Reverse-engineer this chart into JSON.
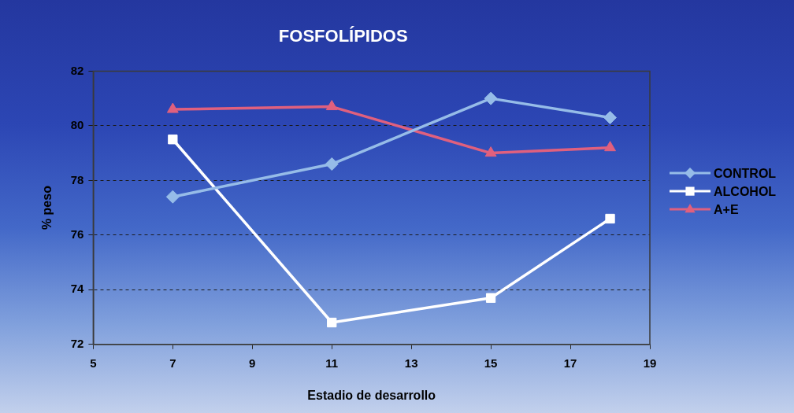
{
  "chart_data": {
    "type": "line",
    "title": "FOSFOLÍPIDOS",
    "xlabel": "Estadio de desarrollo",
    "ylabel": "% peso",
    "x": [
      7,
      11,
      15,
      18
    ],
    "series": [
      {
        "name": "CONTROL",
        "color": "#96bce8",
        "marker": "diamond",
        "values": [
          77.4,
          78.6,
          81.0,
          80.3
        ]
      },
      {
        "name": "ALCOHOL",
        "color": "#ffffff",
        "marker": "square",
        "values": [
          79.5,
          72.8,
          73.7,
          76.6
        ]
      },
      {
        "name": "A+E",
        "color": "#e0607e",
        "marker": "triangle",
        "values": [
          80.6,
          80.7,
          79.0,
          79.2
        ]
      }
    ],
    "xlim": [
      5,
      19
    ],
    "xticks": [
      5,
      7,
      9,
      11,
      13,
      15,
      17,
      19
    ],
    "ylim": [
      72,
      82
    ],
    "yticks": [
      72,
      74,
      76,
      78,
      80,
      82
    ],
    "grid": "y",
    "legend": "right"
  }
}
